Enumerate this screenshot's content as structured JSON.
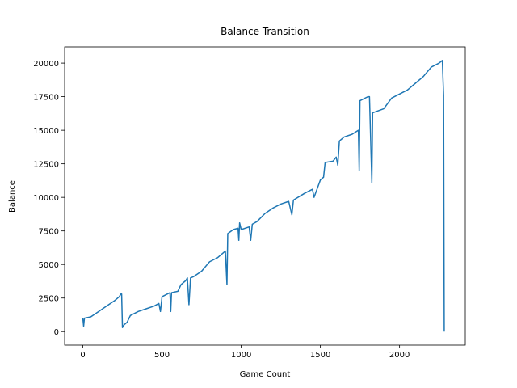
{
  "chart_data": {
    "type": "line",
    "title": "Balance Transition",
    "x_label": "Game Count",
    "y_label": "Balance",
    "color": "#1f77b4",
    "x": [
      0,
      5,
      10,
      50,
      100,
      150,
      200,
      230,
      240,
      245,
      250,
      260,
      280,
      300,
      350,
      400,
      450,
      480,
      490,
      500,
      550,
      555,
      560,
      600,
      620,
      650,
      660,
      670,
      680,
      700,
      750,
      800,
      850,
      900,
      910,
      915,
      950,
      980,
      985,
      990,
      1000,
      1050,
      1060,
      1070,
      1100,
      1150,
      1200,
      1250,
      1300,
      1320,
      1330,
      1400,
      1450,
      1460,
      1500,
      1520,
      1530,
      1580,
      1600,
      1610,
      1620,
      1650,
      1700,
      1740,
      1745,
      1750,
      1800,
      1810,
      1825,
      1830,
      1900,
      1950,
      2000,
      2050,
      2100,
      2150,
      2200,
      2250,
      2270,
      2278,
      2282
    ],
    "values": [
      1000,
      400,
      1000,
      1100,
      1500,
      1900,
      2300,
      2600,
      2800,
      2800,
      300,
      500,
      700,
      1200,
      1500,
      1700,
      1900,
      2100,
      1500,
      2600,
      2900,
      1500,
      2900,
      3000,
      3500,
      3800,
      4000,
      2000,
      4000,
      4100,
      4500,
      5200,
      5500,
      6000,
      3500,
      7300,
      7600,
      7700,
      6800,
      8100,
      7600,
      7800,
      6800,
      8000,
      8200,
      8800,
      9200,
      9500,
      9700,
      8700,
      9800,
      10300,
      10600,
      10000,
      11300,
      11500,
      12600,
      12700,
      13000,
      12400,
      14200,
      14500,
      14700,
      15000,
      12000,
      17200,
      17500,
      17500,
      11100,
      16300,
      16600,
      17400,
      17700,
      18000,
      18500,
      19000,
      19700,
      20000,
      20200,
      17600,
      0
    ],
    "xlim": [
      -115,
      2415
    ],
    "ylim": [
      -1010,
      21210
    ],
    "xticks": [
      0,
      500,
      1000,
      1500,
      2000
    ],
    "yticks": [
      0,
      2500,
      5000,
      7500,
      10000,
      12500,
      15000,
      17500,
      20000
    ]
  }
}
